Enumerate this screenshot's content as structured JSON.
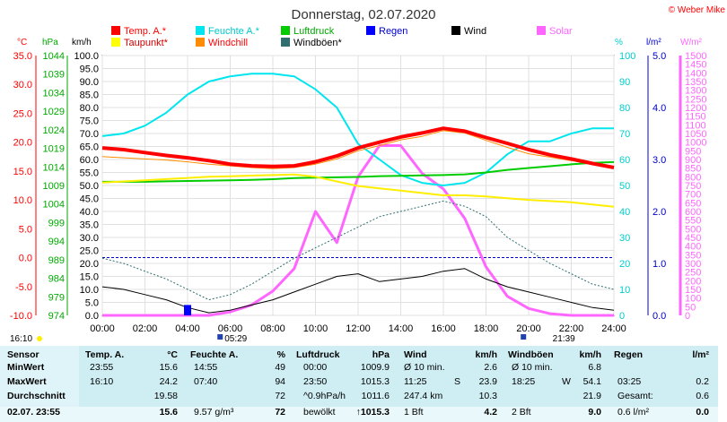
{
  "title": "Donnerstag, 02.07.2020",
  "copyright": "© Weber Mike",
  "legend": [
    {
      "label": "Temp. A.*",
      "color": "#ff0000"
    },
    {
      "label": "Feuchte A.*",
      "color": "#00e5ee"
    },
    {
      "label": "Luftdruck",
      "color": "#00cc00"
    },
    {
      "label": "Regen",
      "color": "#0000ff"
    },
    {
      "label": "Wind",
      "color": "#000000"
    },
    {
      "label": "Solar",
      "color": "#ff66ff"
    },
    {
      "label": "Taupunkt*",
      "color": "#ffff00"
    },
    {
      "label": "Windchill",
      "color": "#ff8c00"
    },
    {
      "label": "Windböen*",
      "color": "#2f6f6f"
    }
  ],
  "axes": {
    "temp_unit": "°C",
    "press_unit": "hPa",
    "wind_unit": "km/h",
    "hum_unit": "%",
    "rain_unit": "l/m²",
    "solar_unit": "W/m²",
    "temp_ticks": [
      "35.0",
      "30.0",
      "25.0",
      "20.0",
      "15.0",
      "10.0",
      "5.0",
      "0.0",
      "-5.0",
      "-10.0"
    ],
    "press_ticks": [
      "1044",
      "1039",
      "1034",
      "1029",
      "1024",
      "1019",
      "1014",
      "1009",
      "1004",
      "999",
      "994",
      "989",
      "984",
      "979",
      "974"
    ],
    "wind_ticks": [
      "100.0",
      "95.0",
      "90.0",
      "85.0",
      "80.0",
      "75.0",
      "70.0",
      "65.0",
      "60.0",
      "55.0",
      "50.0",
      "45.0",
      "40.0",
      "35.0",
      "30.0",
      "25.0",
      "20.0",
      "15.0",
      "10.0",
      "5.0",
      "0.0"
    ],
    "hum_ticks": [
      "100",
      "90",
      "80",
      "70",
      "60",
      "50",
      "40",
      "30",
      "20",
      "10",
      "0"
    ],
    "rain_ticks": [
      "5.0",
      "4.0",
      "3.0",
      "2.0",
      "1.0",
      "0.0"
    ],
    "solar_ticks": [
      "1500",
      "1450",
      "1400",
      "1350",
      "1300",
      "1250",
      "1200",
      "1150",
      "1100",
      "1050",
      "1000",
      "950",
      "900",
      "850",
      "800",
      "750",
      "700",
      "650",
      "600",
      "550",
      "500",
      "450",
      "400",
      "350",
      "300",
      "250",
      "200",
      "150",
      "100",
      "50",
      "0"
    ],
    "time_ticks": [
      "00:00",
      "02:00",
      "04:00",
      "06:00",
      "08:00",
      "10:00",
      "12:00",
      "14:00",
      "16:00",
      "18:00",
      "20:00",
      "22:00",
      "24:00"
    ]
  },
  "markers": {
    "left_time": "16:10",
    "sunrise": "05:29",
    "sunset": "21:39"
  },
  "chart_data": {
    "type": "line",
    "x": [
      "00:00",
      "01:00",
      "02:00",
      "03:00",
      "04:00",
      "05:00",
      "06:00",
      "07:00",
      "08:00",
      "09:00",
      "10:00",
      "11:00",
      "12:00",
      "13:00",
      "14:00",
      "15:00",
      "16:00",
      "17:00",
      "18:00",
      "19:00",
      "20:00",
      "21:00",
      "22:00",
      "23:00",
      "24:00"
    ],
    "series": [
      {
        "name": "Temp. A.*",
        "axis": "°C",
        "values": [
          19.0,
          18.7,
          18.2,
          17.7,
          17.3,
          16.8,
          16.2,
          15.9,
          15.8,
          15.9,
          16.6,
          17.6,
          19.0,
          20.0,
          20.9,
          21.6,
          22.4,
          21.9,
          20.8,
          19.8,
          18.7,
          17.8,
          17.1,
          16.3,
          15.6
        ]
      },
      {
        "name": "Feuchte A.*",
        "axis": "%",
        "values": [
          69,
          70,
          73,
          78,
          85,
          90,
          92,
          93,
          93,
          92,
          87,
          80,
          66,
          60,
          54,
          51,
          50,
          51,
          55,
          62,
          67,
          67,
          70,
          72,
          72
        ]
      },
      {
        "name": "Luftdruck",
        "axis": "hPa",
        "values": [
          1010.0,
          1010.0,
          1010.0,
          1010.1,
          1010.2,
          1010.3,
          1010.4,
          1010.5,
          1010.7,
          1011.0,
          1011.1,
          1011.2,
          1011.3,
          1011.5,
          1011.6,
          1011.7,
          1011.8,
          1012.0,
          1012.5,
          1013.2,
          1013.7,
          1014.2,
          1014.7,
          1015.1,
          1015.3
        ]
      },
      {
        "name": "Taupunkt*",
        "axis": "°C",
        "values": [
          13.0,
          13.2,
          13.4,
          13.6,
          13.8,
          14.0,
          14.1,
          14.2,
          14.3,
          14.4,
          14.0,
          13.2,
          12.4,
          12.0,
          11.6,
          11.2,
          10.8,
          10.8,
          10.6,
          10.3,
          10.0,
          9.8,
          9.6,
          9.2,
          8.8
        ]
      },
      {
        "name": "Windchill",
        "axis": "°C",
        "values": [
          17.5,
          17.3,
          17.1,
          16.9,
          16.6,
          16.2,
          15.9,
          15.6,
          15.4,
          15.6,
          16.2,
          17.1,
          18.5,
          19.4,
          20.4,
          21.0,
          22.0,
          21.6,
          20.3,
          19.1,
          18.0,
          17.4,
          16.8,
          16.2,
          15.6
        ]
      },
      {
        "name": "Wind",
        "axis": "km/h",
        "values": [
          11,
          10,
          8,
          6,
          3,
          1,
          2,
          4,
          6,
          9,
          12,
          15,
          16,
          13,
          14,
          15,
          17,
          18,
          14,
          11,
          9,
          7,
          5,
          3,
          2
        ]
      },
      {
        "name": "Windböen*",
        "axis": "km/h",
        "values": [
          22,
          20,
          17,
          14,
          10,
          6,
          8,
          12,
          17,
          22,
          26,
          30,
          34,
          38,
          40,
          42,
          44,
          42,
          38,
          30,
          25,
          20,
          16,
          12,
          10
        ]
      },
      {
        "name": "Solar",
        "axis": "W/m²",
        "values": [
          0,
          0,
          0,
          0,
          0,
          0,
          20,
          60,
          140,
          270,
          600,
          420,
          800,
          980,
          980,
          820,
          730,
          560,
          280,
          110,
          40,
          10,
          0,
          0,
          0
        ]
      },
      {
        "name": "Regen",
        "axis": "l/m²",
        "values": [
          0,
          0,
          0,
          0,
          0.2,
          0,
          0,
          0,
          0,
          0,
          0,
          0,
          0,
          0,
          0,
          0,
          0,
          0,
          0,
          0,
          0,
          0,
          0,
          0,
          0
        ]
      }
    ],
    "ylim_temp": [
      -10,
      35
    ],
    "ylim_press": [
      974,
      1044
    ],
    "ylim_wind": [
      0,
      100
    ],
    "ylim_hum": [
      0,
      100
    ],
    "ylim_rain": [
      0,
      5
    ],
    "ylim_solar": [
      0,
      1500
    ],
    "grid": true
  },
  "stats": {
    "headers": {
      "sensor": "Sensor",
      "temp": "Temp. A.",
      "temp_unit": "°C",
      "hum": "Feuchte A.",
      "hum_unit": "%",
      "press": "Luftdruck",
      "press_unit": "hPa",
      "wind": "Wind",
      "wind_unit": "km/h",
      "gust": "Windböen",
      "gust_unit": "km/h",
      "rain": "Regen",
      "rain_unit": "l/m²"
    },
    "rows": [
      {
        "label": "MinWert",
        "temp_time": "23:55",
        "temp_val": "15.6",
        "hum_time": "14:55",
        "hum_val": "49",
        "press_time": "00:00",
        "press_val": "1009.9",
        "wind_lbl": "Ø 10 min.",
        "wind_val": "2.6",
        "gust_lbl": "Ø 10 min.",
        "gust_val": "6.8",
        "rain_lbl": "",
        "rain_val": ""
      },
      {
        "label": "MaxWert",
        "temp_time": "16:10",
        "temp_val": "24.2",
        "hum_time": "07:40",
        "hum_val": "94",
        "press_time": "23:50",
        "press_val": "1015.3",
        "wind_lbl": "11:25",
        "wind_dir": "S",
        "wind_val": "23.9",
        "gust_lbl": "18:25",
        "gust_dir": "W",
        "gust_val": "54.1",
        "rain_lbl": "03:25",
        "rain_val": "0.2"
      },
      {
        "label": "Durchschnitt",
        "temp_time": "",
        "temp_val": "19.58",
        "hum_time": "",
        "hum_val": "72",
        "press_time": "^0.9hPa/h",
        "press_val": "1011.6",
        "wind_lbl": "247.4 km",
        "wind_val": "10.3",
        "gust_lbl": "",
        "gust_val": "21.9",
        "rain_lbl": "Gesamt:",
        "rain_val": "0.6"
      },
      {
        "label": "02.07. 23:55",
        "temp_time": "",
        "temp_val": "15.6",
        "hum_time": "9.57 g/m³",
        "hum_val": "72",
        "press_time": "bewölkt",
        "press_arrow": "↑",
        "press_val": "1015.3",
        "wind_lbl": "1 Bft",
        "wind_val": "4.2",
        "gust_lbl": "2 Bft",
        "gust_val": "9.0",
        "rain_lbl": "0.6 l/m²",
        "rain_val": "0.0"
      }
    ]
  }
}
